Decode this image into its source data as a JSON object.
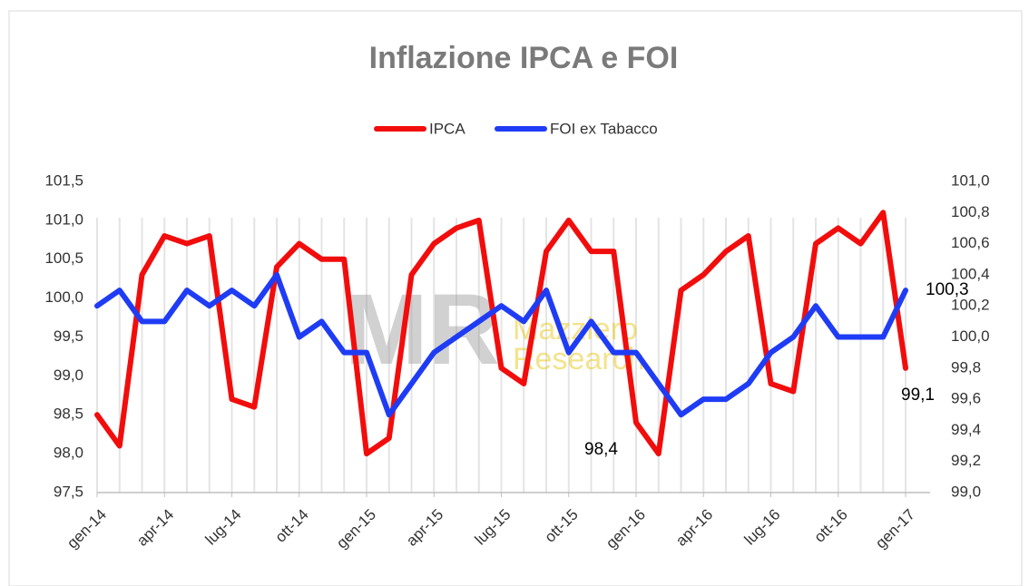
{
  "chart_data": {
    "type": "line",
    "title": "Inflazione IPCA e FOI",
    "watermark": [
      "MR",
      "Mazziero",
      "Research"
    ],
    "categories": [
      "gen-14",
      null,
      null,
      "apr-14",
      null,
      null,
      "lug-14",
      null,
      null,
      "ott-14",
      null,
      null,
      "gen-15",
      null,
      null,
      "apr-15",
      null,
      null,
      "lug-15",
      null,
      null,
      "ott-15",
      null,
      null,
      "gen-16",
      null,
      null,
      "apr-16",
      null,
      null,
      "lug-16",
      null,
      null,
      "ott-16",
      null,
      null,
      "gen-17"
    ],
    "series": [
      {
        "name": "IPCA",
        "color": "#f20d0d",
        "axis": "y",
        "values": [
          98.5,
          98.1,
          100.3,
          100.8,
          100.7,
          100.8,
          98.7,
          98.6,
          100.4,
          100.7,
          100.5,
          100.5,
          98.0,
          98.2,
          100.3,
          100.7,
          100.9,
          101.0,
          99.1,
          98.9,
          100.6,
          101.0,
          100.6,
          100.6,
          98.4,
          98.0,
          100.1,
          100.3,
          100.6,
          100.8,
          98.9,
          98.8,
          100.7,
          100.9,
          100.7,
          101.1,
          99.1
        ],
        "value_labels": [
          null,
          null,
          null,
          null,
          null,
          null,
          null,
          null,
          null,
          null,
          null,
          null,
          null,
          null,
          null,
          null,
          null,
          null,
          null,
          null,
          null,
          null,
          null,
          null,
          "98,4",
          null,
          null,
          null,
          null,
          null,
          null,
          null,
          null,
          null,
          null,
          null,
          "99,1"
        ]
      },
      {
        "name": "FOI ex Tabacco",
        "color": "#1f3cf5",
        "axis": "y2",
        "values": [
          100.2,
          100.3,
          100.1,
          100.1,
          100.3,
          100.2,
          100.3,
          100.2,
          100.4,
          100.0,
          100.1,
          99.9,
          99.9,
          99.5,
          99.7,
          99.9,
          100.0,
          100.1,
          100.2,
          100.1,
          100.3,
          99.9,
          100.1,
          99.9,
          99.9,
          99.7,
          99.5,
          99.6,
          99.6,
          99.7,
          99.9,
          100.0,
          100.2,
          100.0,
          100.0,
          100.0,
          100.3
        ],
        "value_labels": [
          null,
          null,
          null,
          null,
          null,
          null,
          null,
          null,
          null,
          null,
          null,
          null,
          null,
          null,
          null,
          null,
          null,
          null,
          null,
          null,
          null,
          null,
          null,
          null,
          null,
          null,
          null,
          null,
          null,
          null,
          null,
          null,
          null,
          null,
          null,
          null,
          "100,3"
        ]
      }
    ],
    "ylim": [
      97.5,
      101.5
    ],
    "yticks": [
      {
        "value": 97.5,
        "label": "97,5"
      },
      {
        "value": 98.0,
        "label": "98,0"
      },
      {
        "value": 98.5,
        "label": "98,5"
      },
      {
        "value": 99.0,
        "label": "99,0"
      },
      {
        "value": 99.5,
        "label": "99,5"
      },
      {
        "value": 100.0,
        "label": "100,0"
      },
      {
        "value": 100.5,
        "label": "100,5"
      },
      {
        "value": 101.0,
        "label": "101,0"
      },
      {
        "value": 101.5,
        "label": "101,5"
      }
    ],
    "y2lim": [
      99.0,
      101.0
    ],
    "y2ticks": [
      {
        "value": 99.0,
        "label": "99,0"
      },
      {
        "value": 99.2,
        "label": "99,2"
      },
      {
        "value": 99.4,
        "label": "99,4"
      },
      {
        "value": 99.6,
        "label": "99,6"
      },
      {
        "value": 99.8,
        "label": "99,8"
      },
      {
        "value": 100.0,
        "label": "100,0"
      },
      {
        "value": 100.2,
        "label": "100,2"
      },
      {
        "value": 100.4,
        "label": "100,4"
      },
      {
        "value": 100.6,
        "label": "100,6"
      },
      {
        "value": 100.8,
        "label": "100,8"
      },
      {
        "value": 101.0,
        "label": "101,0"
      }
    ],
    "legend": "top",
    "grid": "vertical"
  }
}
